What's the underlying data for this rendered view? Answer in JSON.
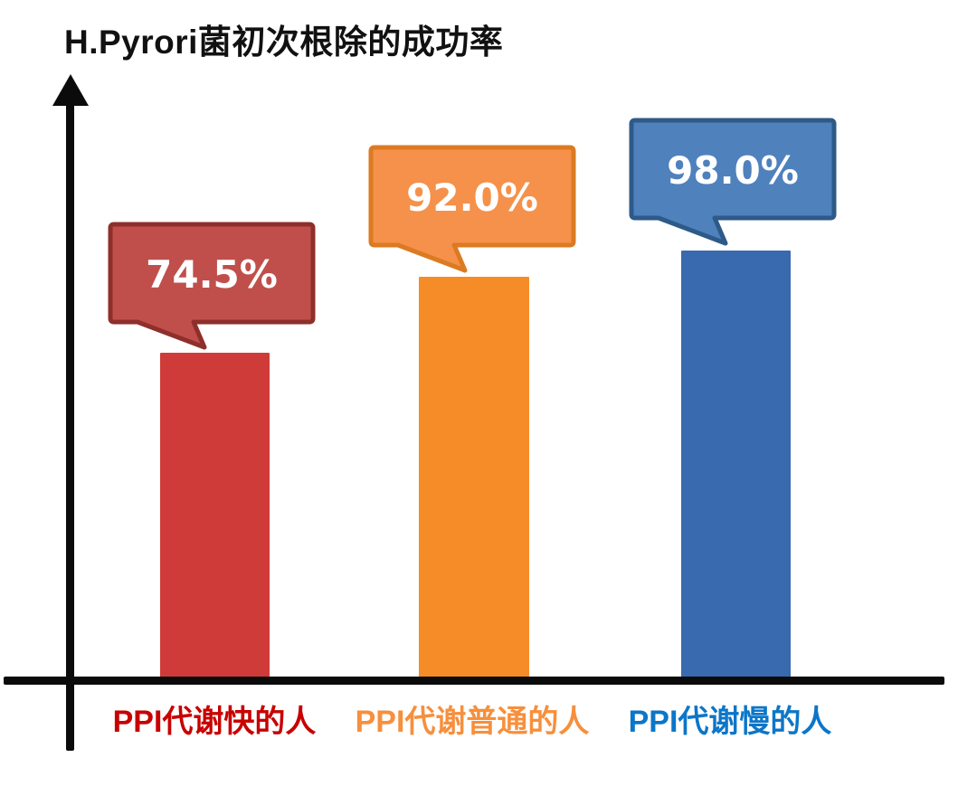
{
  "title": "H.Pyrori菌初次根除的成功率",
  "chart_data": {
    "type": "bar",
    "title": "H.Pyrori菌初次根除的成功率",
    "categories": [
      "PPI代谢快的人",
      "PPI代谢普通的人",
      "PPI代谢慢的人"
    ],
    "values": [
      74.5,
      92.0,
      98.0
    ],
    "value_labels": [
      "74.5%",
      "92.0%",
      "98.0%"
    ],
    "xlabel": "",
    "ylabel": "",
    "ylim": [
      0,
      100
    ],
    "grid": false,
    "legend": "none",
    "background_color": "#FFFFFF",
    "axis_color": "#0B0B0B",
    "value_text_color": "#FFFFFF",
    "bar_colors": [
      "#CF3B38",
      "#F68C28",
      "#3969AE"
    ],
    "callout_fill_colors": [
      "#C04F4B",
      "#F5914A",
      "#4F81BD"
    ],
    "callout_border_colors": [
      "#8E2F2B",
      "#DC7A22",
      "#2E5A88"
    ],
    "category_label_colors": [
      "#C80000",
      "#F78F3C",
      "#0C76C8"
    ]
  }
}
